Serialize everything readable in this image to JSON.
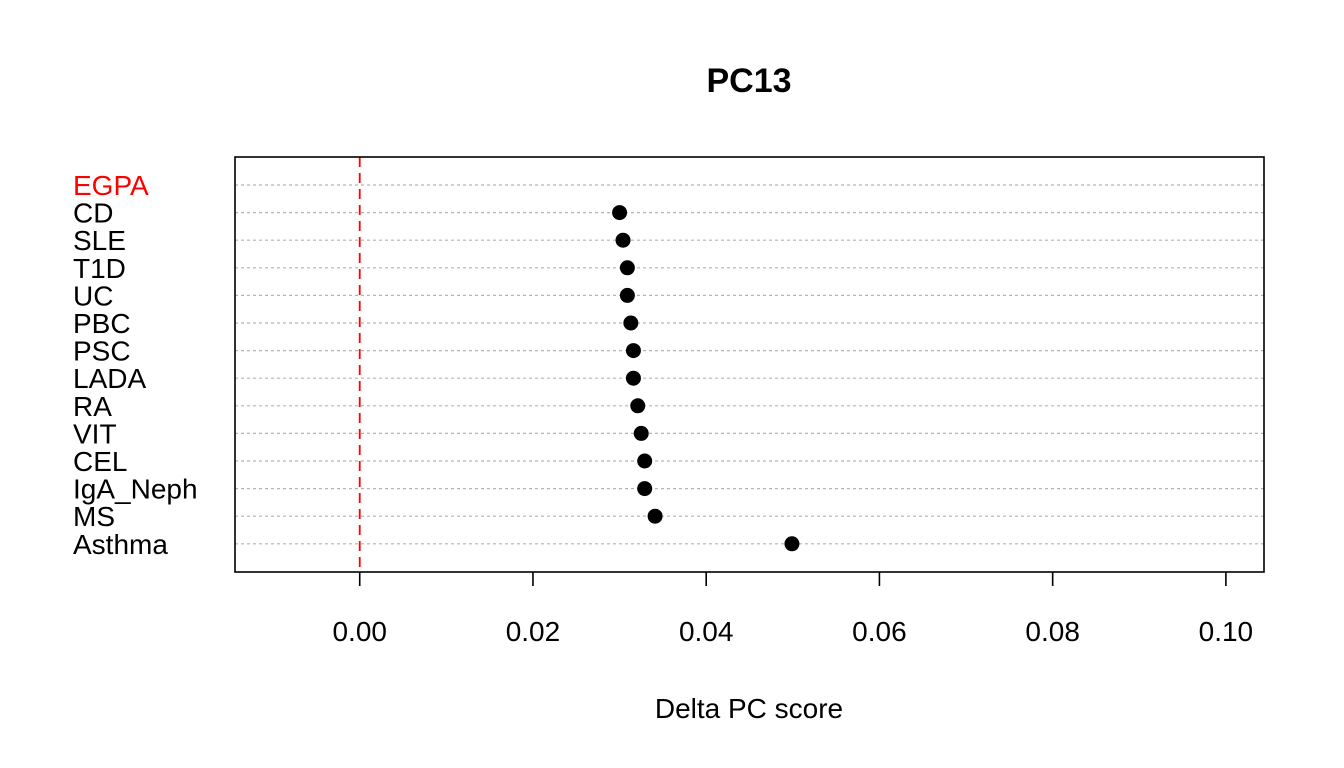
{
  "chart_data": {
    "type": "scatter",
    "title": "PC13",
    "xlabel": "Delta PC score",
    "ylabel": "",
    "xlim": [
      -0.0144,
      0.1044
    ],
    "xticks": [
      0.0,
      0.02,
      0.04,
      0.06,
      0.08,
      0.1
    ],
    "xtick_labels": [
      "0.00",
      "0.02",
      "0.04",
      "0.06",
      "0.08",
      "0.10"
    ],
    "grid": "horizontal dotted per category",
    "reference_line": {
      "x": 0,
      "style": "dashed",
      "color": "#ff0000"
    },
    "highlight_category": "EGPA",
    "highlight_color": "#ff0000",
    "categories": [
      "EGPA",
      "CD",
      "SLE",
      "T1D",
      "UC",
      "PBC",
      "PSC",
      "LADA",
      "RA",
      "VIT",
      "CEL",
      "IgA_Neph",
      "MS",
      "Asthma"
    ],
    "values": [
      null,
      0.03,
      0.0304,
      0.0309,
      0.0309,
      0.0313,
      0.0316,
      0.0316,
      0.0321,
      0.0325,
      0.0329,
      0.0329,
      0.0341,
      0.0499
    ],
    "point_color": "#000000"
  }
}
